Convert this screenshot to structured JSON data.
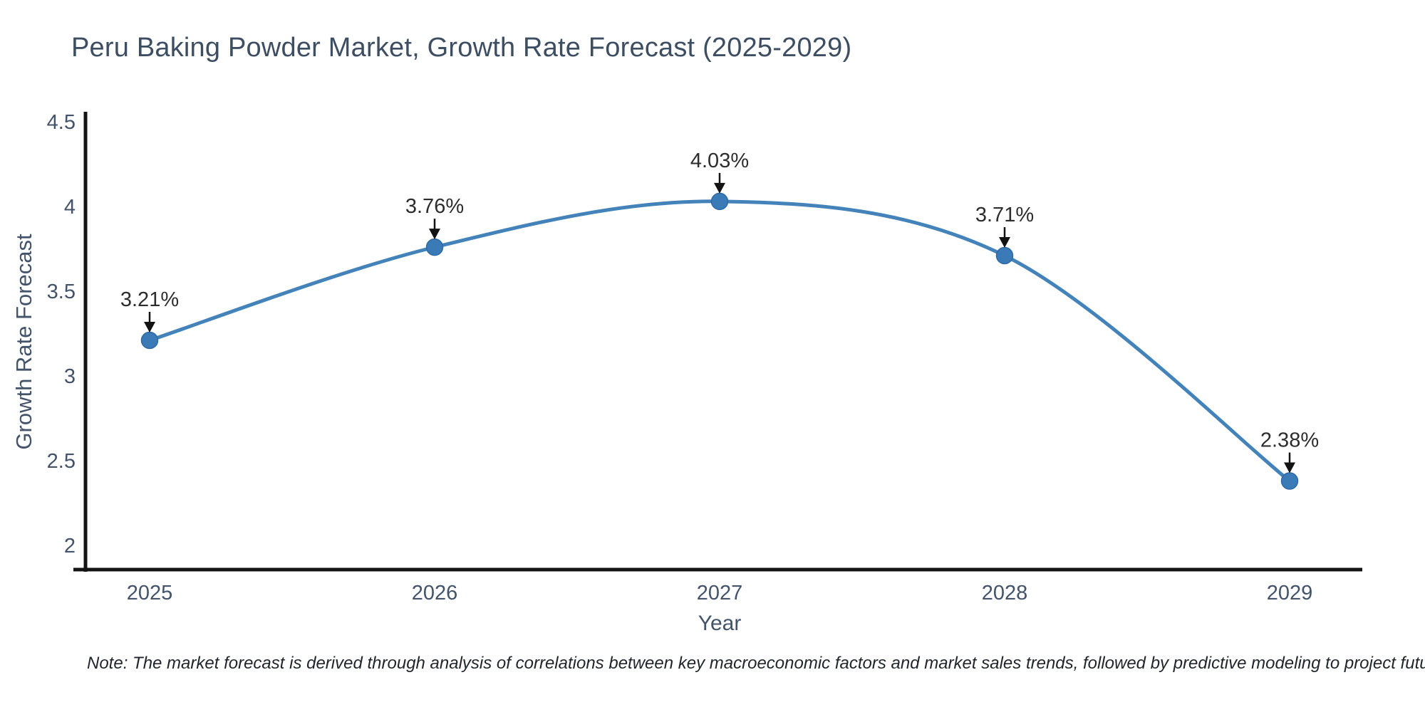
{
  "figure": {
    "note": "Note: The market forecast is derived through analysis of correlations between key macroeconomic factors and market sales trends, followed by predictive modeling to project future sales"
  },
  "chart_data": {
    "type": "line",
    "title": "Peru Baking Powder Market, Growth Rate Forecast (2025-2029)",
    "xlabel": "Year",
    "ylabel": "Growth Rate Forecast",
    "categories": [
      "2025",
      "2026",
      "2027",
      "2028",
      "2029"
    ],
    "values": [
      3.21,
      3.76,
      4.03,
      3.71,
      2.38
    ],
    "point_labels": [
      "3.21%",
      "3.76%",
      "4.03%",
      "3.71%",
      "2.38%"
    ],
    "yticks": [
      2,
      2.5,
      3,
      3.5,
      4,
      4.5
    ],
    "ylim": [
      2,
      4.5
    ],
    "grid": false,
    "legend_position": "none",
    "curve_style": "smooth-spline",
    "colors": {
      "line": "#4383b9",
      "marker_fill": "#3a7ab6",
      "marker_edge": "#2e6aa5",
      "axis_line": "#131313",
      "arrow": "#131313",
      "tick_text": "#42536a",
      "title_text": "#3d4e63",
      "annotation_text": "#2d2d2d"
    }
  }
}
